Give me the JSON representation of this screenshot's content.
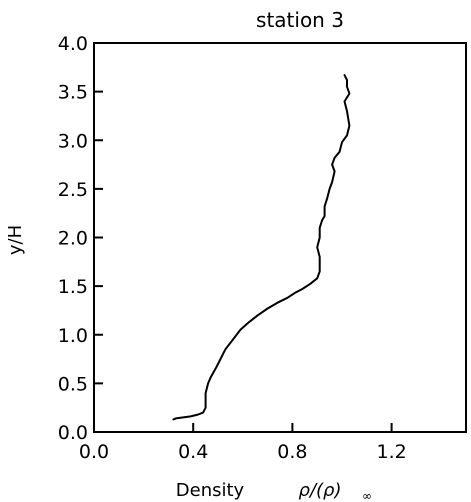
{
  "chart_data": {
    "type": "line",
    "title": "station 3",
    "xlabel": "Density",
    "xlabel_formula": "ρ/(ρ)",
    "xlabel_subscript": "∞",
    "ylabel": "y/H",
    "xlim": [
      0.0,
      1.5
    ],
    "ylim": [
      0.0,
      4.0
    ],
    "xticks": [
      "0.0",
      "0.4",
      "0.8",
      "1.2"
    ],
    "xtick_values": [
      0.0,
      0.4,
      0.8,
      1.2
    ],
    "yticks": [
      "0.0",
      "0.5",
      "1.0",
      "1.5",
      "2.0",
      "2.5",
      "3.0",
      "3.5",
      "4.0"
    ],
    "ytick_values": [
      0.0,
      0.5,
      1.0,
      1.5,
      2.0,
      2.5,
      3.0,
      3.5,
      4.0
    ],
    "grid": false,
    "series": [
      {
        "x": [
          0.32,
          0.33,
          0.36,
          0.39,
          0.42,
          0.44,
          0.45,
          0.45,
          0.45,
          0.46,
          0.47,
          0.49,
          0.51,
          0.53,
          0.56,
          0.59,
          0.62,
          0.66,
          0.7,
          0.74,
          0.78,
          0.81,
          0.84,
          0.87,
          0.9,
          0.91,
          0.91,
          0.91,
          0.9,
          0.91,
          0.91,
          0.92,
          0.93,
          0.93,
          0.94,
          0.95,
          0.96,
          0.97,
          0.96,
          0.97,
          0.99,
          1.0,
          1.02,
          1.03,
          1.02,
          1.01,
          1.03,
          1.02,
          1.02,
          1.01
        ],
        "y": [
          0.13,
          0.14,
          0.15,
          0.16,
          0.18,
          0.2,
          0.25,
          0.3,
          0.4,
          0.5,
          0.56,
          0.65,
          0.75,
          0.85,
          0.95,
          1.05,
          1.12,
          1.2,
          1.27,
          1.33,
          1.38,
          1.43,
          1.47,
          1.52,
          1.58,
          1.65,
          1.72,
          1.8,
          1.9,
          2.0,
          2.1,
          2.18,
          2.22,
          2.32,
          2.4,
          2.5,
          2.57,
          2.68,
          2.75,
          2.82,
          2.88,
          2.98,
          3.05,
          3.15,
          3.3,
          3.4,
          3.48,
          3.55,
          3.62,
          3.67
        ]
      }
    ]
  }
}
